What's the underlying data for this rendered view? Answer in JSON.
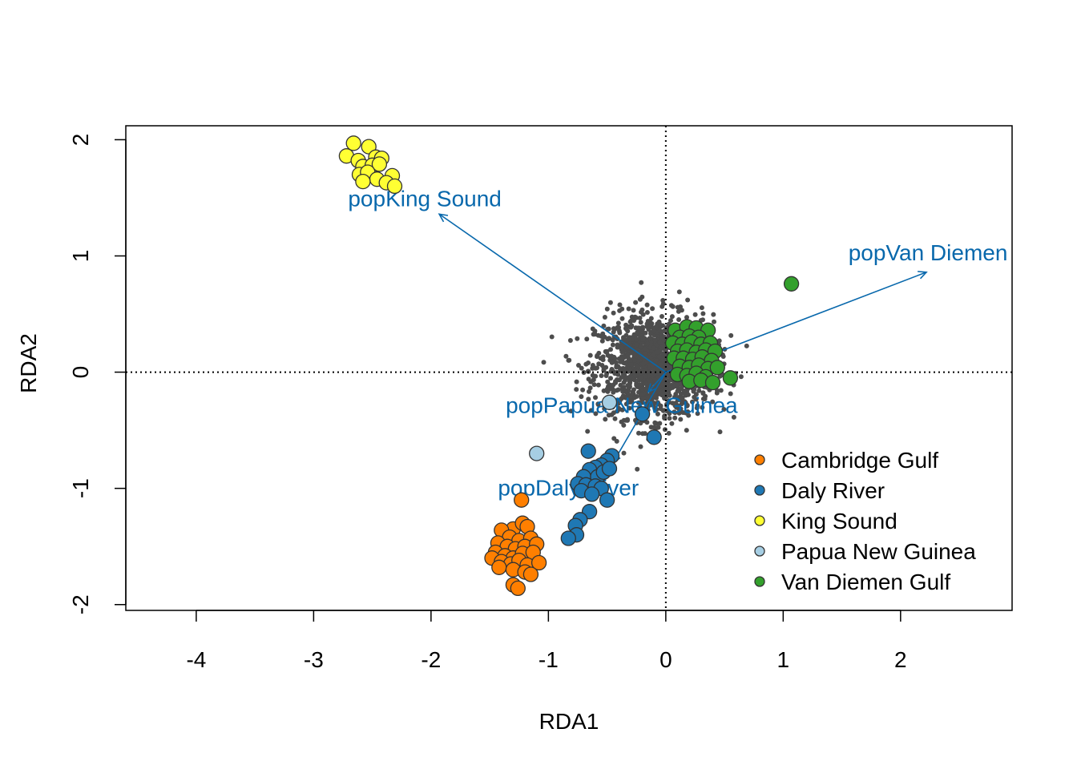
{
  "chart_data": {
    "type": "scatter",
    "title": "",
    "xlabel": "RDA1",
    "ylabel": "RDA2",
    "xlim": [
      -4.6,
      2.95
    ],
    "ylim": [
      -2.05,
      2.12
    ],
    "x_ticks": [
      -4,
      -3,
      -2,
      -1,
      0,
      1,
      2
    ],
    "y_ticks": [
      -2,
      -1,
      0,
      1,
      2
    ],
    "x_tick_labels": [
      "-4",
      "-3",
      "-2",
      "-1",
      "0",
      "1",
      "2"
    ],
    "y_tick_labels": [
      "-2",
      "-1",
      "0",
      "1",
      "2"
    ],
    "reference_lines": {
      "x": 0,
      "y": 0,
      "style": "dotted"
    },
    "background_points": {
      "description": "SNP loadings",
      "color": "#4D4D4D",
      "count": 1400,
      "center": [
        -0.1,
        0.05
      ],
      "spread": [
        0.25,
        0.22
      ]
    },
    "series": [
      {
        "name": "Cambridge Gulf",
        "color": "#FF7F00",
        "points": [
          [
            -1.23,
            -1.1
          ],
          [
            -1.3,
            -1.35
          ],
          [
            -1.22,
            -1.3
          ],
          [
            -1.18,
            -1.33
          ],
          [
            -1.4,
            -1.36
          ],
          [
            -1.33,
            -1.42
          ],
          [
            -1.25,
            -1.45
          ],
          [
            -1.15,
            -1.43
          ],
          [
            -1.43,
            -1.47
          ],
          [
            -1.35,
            -1.5
          ],
          [
            -1.28,
            -1.52
          ],
          [
            -1.2,
            -1.5
          ],
          [
            -1.1,
            -1.48
          ],
          [
            -1.45,
            -1.55
          ],
          [
            -1.37,
            -1.58
          ],
          [
            -1.3,
            -1.6
          ],
          [
            -1.22,
            -1.56
          ],
          [
            -1.13,
            -1.55
          ],
          [
            -1.48,
            -1.6
          ],
          [
            -1.4,
            -1.63
          ],
          [
            -1.32,
            -1.65
          ],
          [
            -1.25,
            -1.62
          ],
          [
            -1.18,
            -1.66
          ],
          [
            -1.08,
            -1.64
          ],
          [
            -1.42,
            -1.68
          ],
          [
            -1.3,
            -1.7
          ],
          [
            -1.2,
            -1.72
          ],
          [
            -1.15,
            -1.74
          ],
          [
            -1.3,
            -1.83
          ],
          [
            -1.26,
            -1.86
          ]
        ]
      },
      {
        "name": "Daly River",
        "color": "#1F78B4",
        "points": [
          [
            -0.1,
            -0.56
          ],
          [
            -0.2,
            -0.36
          ],
          [
            -0.46,
            -0.72
          ],
          [
            -0.5,
            -0.76
          ],
          [
            -0.55,
            -0.8
          ],
          [
            -0.6,
            -0.82
          ],
          [
            -0.65,
            -0.84
          ],
          [
            -0.7,
            -0.9
          ],
          [
            -0.58,
            -0.9
          ],
          [
            -0.53,
            -0.86
          ],
          [
            -0.48,
            -0.83
          ],
          [
            -0.75,
            -0.96
          ],
          [
            -0.68,
            -0.97
          ],
          [
            -0.6,
            -0.98
          ],
          [
            -0.55,
            -1.0
          ],
          [
            -0.72,
            -1.02
          ],
          [
            -0.63,
            -1.05
          ],
          [
            -0.66,
            -0.68
          ],
          [
            -0.5,
            -1.1
          ],
          [
            -0.65,
            -1.2
          ],
          [
            -0.73,
            -1.27
          ],
          [
            -0.77,
            -1.32
          ],
          [
            -0.76,
            -1.4
          ],
          [
            -0.83,
            -1.43
          ]
        ]
      },
      {
        "name": "King Sound",
        "color": "#FFFF33",
        "points": [
          [
            -2.66,
            1.97
          ],
          [
            -2.53,
            1.94
          ],
          [
            -2.72,
            1.86
          ],
          [
            -2.62,
            1.82
          ],
          [
            -2.47,
            1.85
          ],
          [
            -2.42,
            1.84
          ],
          [
            -2.58,
            1.77
          ],
          [
            -2.5,
            1.78
          ],
          [
            -2.44,
            1.79
          ],
          [
            -2.61,
            1.7
          ],
          [
            -2.54,
            1.72
          ],
          [
            -2.33,
            1.69
          ],
          [
            -2.46,
            1.66
          ],
          [
            -2.58,
            1.64
          ],
          [
            -2.38,
            1.63
          ],
          [
            -2.31,
            1.6
          ]
        ]
      },
      {
        "name": "Papua New Guinea",
        "color": "#A6CEE3",
        "points": [
          [
            -1.1,
            -0.7
          ],
          [
            -0.48,
            -0.26
          ]
        ]
      },
      {
        "name": "Van Diemen Gulf",
        "color": "#33A02C",
        "points": [
          [
            1.07,
            0.76
          ],
          [
            0.08,
            0.36
          ],
          [
            0.18,
            0.39
          ],
          [
            0.26,
            0.38
          ],
          [
            0.36,
            0.36
          ],
          [
            0.12,
            0.3
          ],
          [
            0.2,
            0.31
          ],
          [
            0.28,
            0.3
          ],
          [
            0.06,
            0.25
          ],
          [
            0.14,
            0.24
          ],
          [
            0.22,
            0.26
          ],
          [
            0.3,
            0.24
          ],
          [
            0.38,
            0.25
          ],
          [
            0.1,
            0.18
          ],
          [
            0.18,
            0.19
          ],
          [
            0.26,
            0.17
          ],
          [
            0.34,
            0.19
          ],
          [
            0.42,
            0.18
          ],
          [
            0.07,
            0.12
          ],
          [
            0.15,
            0.12
          ],
          [
            0.23,
            0.11
          ],
          [
            0.31,
            0.13
          ],
          [
            0.39,
            0.1
          ],
          [
            0.12,
            0.05
          ],
          [
            0.2,
            0.04
          ],
          [
            0.28,
            0.06
          ],
          [
            0.36,
            0.03
          ],
          [
            0.44,
            0.04
          ],
          [
            0.1,
            -0.02
          ],
          [
            0.18,
            -0.03
          ],
          [
            0.26,
            -0.01
          ],
          [
            0.34,
            -0.04
          ],
          [
            0.55,
            -0.05
          ],
          [
            0.2,
            -0.08
          ],
          [
            0.3,
            -0.07
          ],
          [
            0.4,
            -0.09
          ]
        ]
      }
    ],
    "arrows": [
      {
        "label": "popKing Sound",
        "to": [
          -1.93,
          1.36
        ]
      },
      {
        "label": "popVan Diemen",
        "to": [
          2.22,
          0.86
        ]
      },
      {
        "label": "popPapua New Guinea",
        "to": [
          -0.15,
          -0.17
        ]
      },
      {
        "label": "popDaly River",
        "to": [
          -0.45,
          -0.78
        ]
      }
    ],
    "arrow_color": "#0868AC",
    "legend": {
      "position": "bottom-right",
      "entries": [
        "Cambridge Gulf",
        "Daly River",
        "King Sound",
        "Papua New Guinea",
        "Van Diemen Gulf"
      ]
    }
  }
}
